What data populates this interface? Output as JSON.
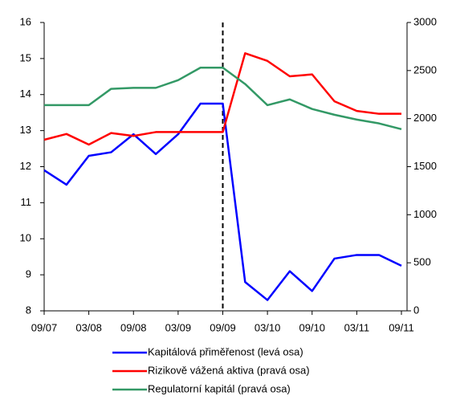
{
  "chart_data": {
    "type": "line",
    "categories": [
      "09/07",
      null,
      "03/08",
      null,
      "09/08",
      null,
      "03/09",
      null,
      "09/09",
      null,
      "03/10",
      null,
      "09/10",
      null,
      "03/11",
      null,
      "09/11"
    ],
    "ylim": [
      8,
      16
    ],
    "yticks": [
      8,
      9,
      10,
      11,
      12,
      13,
      14,
      15,
      16
    ],
    "y2lim": [
      0,
      3000
    ],
    "y2ticks": [
      0,
      500,
      1000,
      1500,
      2000,
      2500,
      3000
    ],
    "grid": false,
    "series": [
      {
        "name": "Kapitálová přiměřenost (levá osa)",
        "color": "#0000ff",
        "values": [
          11.9,
          11.5,
          12.3,
          12.4,
          12.9,
          12.35,
          12.9,
          13.75,
          13.75,
          8.8,
          8.3,
          9.1,
          8.55,
          9.45,
          9.55,
          9.55,
          9.25
        ]
      },
      {
        "name": "Rizikově vážená aktiva (pravá osa)",
        "color": "#ff0000",
        "axis": "y2",
        "values": [
          1780,
          1840,
          1730,
          1850,
          1820,
          1860,
          1860,
          1860,
          1860,
          2680,
          2600,
          2440,
          2460,
          2180,
          2080,
          2050,
          2050
        ]
      },
      {
        "name": "Regulatorní kapitál (pravá osa)",
        "color": "#339966",
        "axis": "y2",
        "values": [
          2140,
          2140,
          2140,
          2310,
          2320,
          2320,
          2400,
          2530,
          2530,
          2360,
          2140,
          2200,
          2100,
          2040,
          1990,
          1950,
          1890
        ]
      }
    ]
  }
}
